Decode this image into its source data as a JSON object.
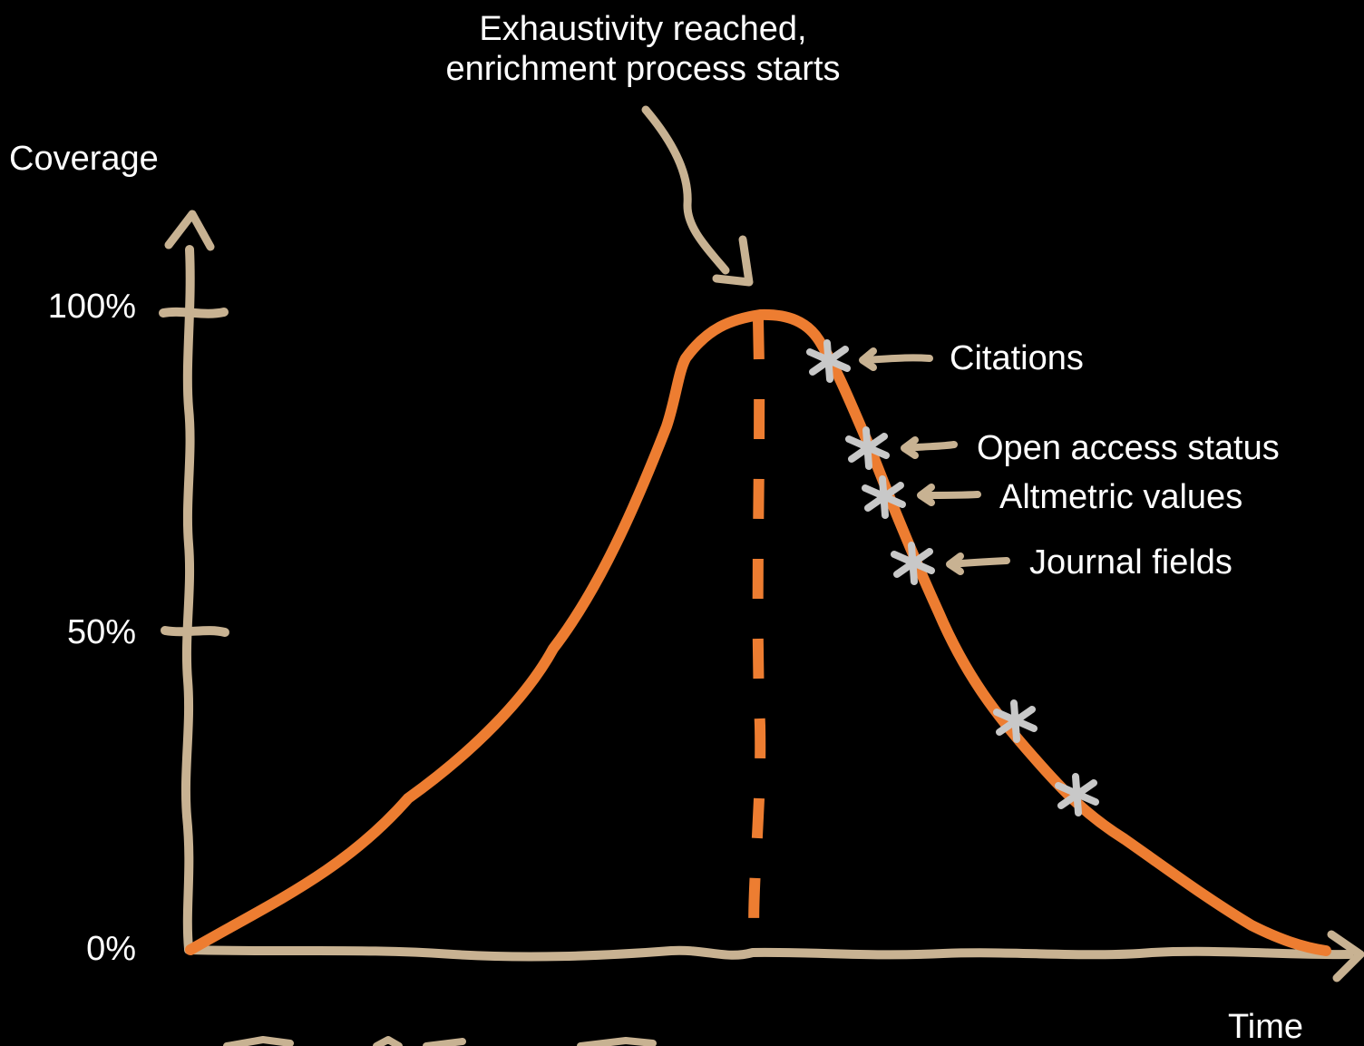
{
  "callout": {
    "line1": "Exhaustivity reached,",
    "line2": "enrichment process starts"
  },
  "axes": {
    "y_title": "Coverage",
    "x_title": "Time",
    "ticks": [
      "100%",
      "50%",
      "0%"
    ]
  },
  "annotations": [
    "Citations",
    "Open access status",
    "Altmetric values",
    "Journal fields"
  ],
  "colors": {
    "background": "#000000",
    "curve": "#ED7D31",
    "axis": "#C8B292",
    "marker": "#C8C8C8",
    "text": "#FFFFFF"
  }
}
